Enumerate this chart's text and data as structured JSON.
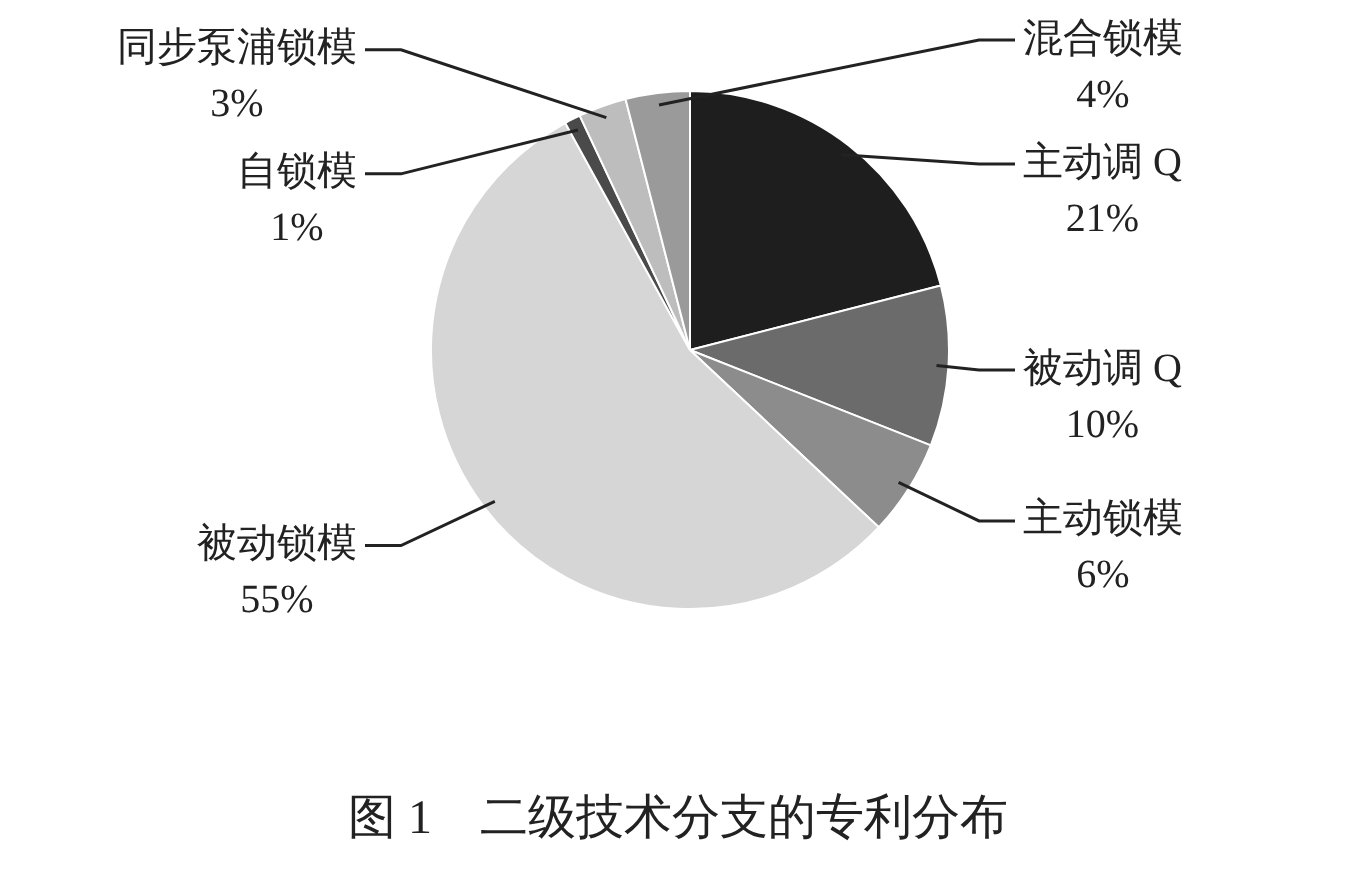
{
  "chart_data": {
    "type": "pie",
    "title": "图 1　二级技术分支的专利分布",
    "categories": [
      "主动调 Q",
      "被动调 Q",
      "主动锁模",
      "被动锁模",
      "自锁模",
      "同步泵浦锁模",
      "混合锁模"
    ],
    "values": [
      21,
      10,
      6,
      55,
      1,
      3,
      4
    ],
    "value_labels": [
      "21%",
      "10%",
      "6%",
      "55%",
      "1%",
      "3%",
      "4%"
    ],
    "colors": [
      "#1e1e1e",
      "#6b6b6b",
      "#8c8c8c",
      "#d6d6d6",
      "#4a4a4a",
      "#bdbdbd",
      "#9a9a9a"
    ],
    "legend": false
  }
}
